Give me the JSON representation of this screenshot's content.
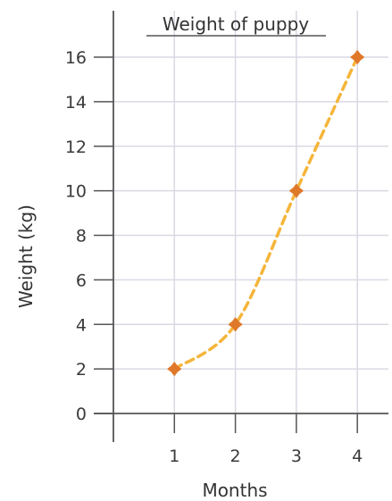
{
  "chart_data": {
    "type": "line",
    "title": "Weight of puppy",
    "xlabel": "Months",
    "ylabel": "Weight (kg)",
    "x": [
      1,
      2,
      3,
      4
    ],
    "series": [
      {
        "values": [
          2,
          4,
          10,
          16
        ]
      }
    ],
    "xticks": [
      "1",
      "2",
      "3",
      "4"
    ],
    "yticks": [
      "0",
      "2",
      "4",
      "6",
      "8",
      "10",
      "12",
      "14",
      "16"
    ],
    "ylim": [
      0,
      16
    ],
    "xlim": [
      0,
      4
    ],
    "grid": true,
    "legend": "none",
    "colors": {
      "line": "#f5b53a",
      "marker": "#e0782a",
      "grid": "#d9d9e3",
      "axis": "#555555",
      "title_underline": "#555555"
    }
  }
}
